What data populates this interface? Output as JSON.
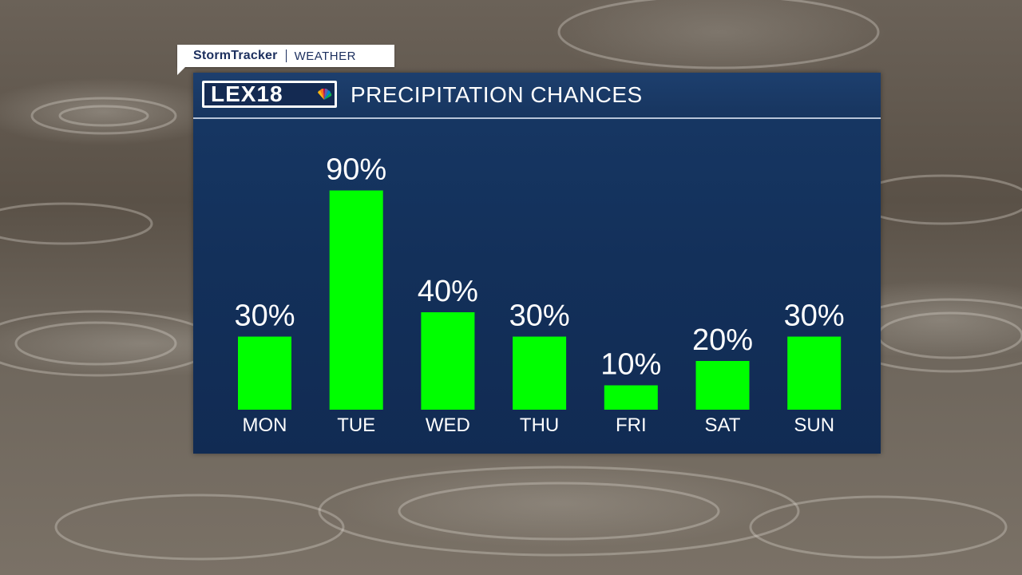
{
  "brand": {
    "storm_label": "StormTracker",
    "weather_label": "WEATHER"
  },
  "logo": {
    "text": "LEX18"
  },
  "colors": {
    "bar": "#00ff00",
    "panel": "#13305a",
    "text": "#ffffff"
  },
  "chart_data": {
    "type": "bar",
    "title": "PRECIPITATION CHANCES",
    "categories": [
      "MON",
      "TUE",
      "WED",
      "THU",
      "FRI",
      "SAT",
      "SUN"
    ],
    "values": [
      30,
      90,
      40,
      30,
      10,
      20,
      30
    ],
    "value_labels": [
      "30%",
      "90%",
      "40%",
      "30%",
      "10%",
      "20%",
      "30%"
    ],
    "unit": "%",
    "ylim": [
      0,
      100
    ],
    "grid": false,
    "legend": "none"
  }
}
